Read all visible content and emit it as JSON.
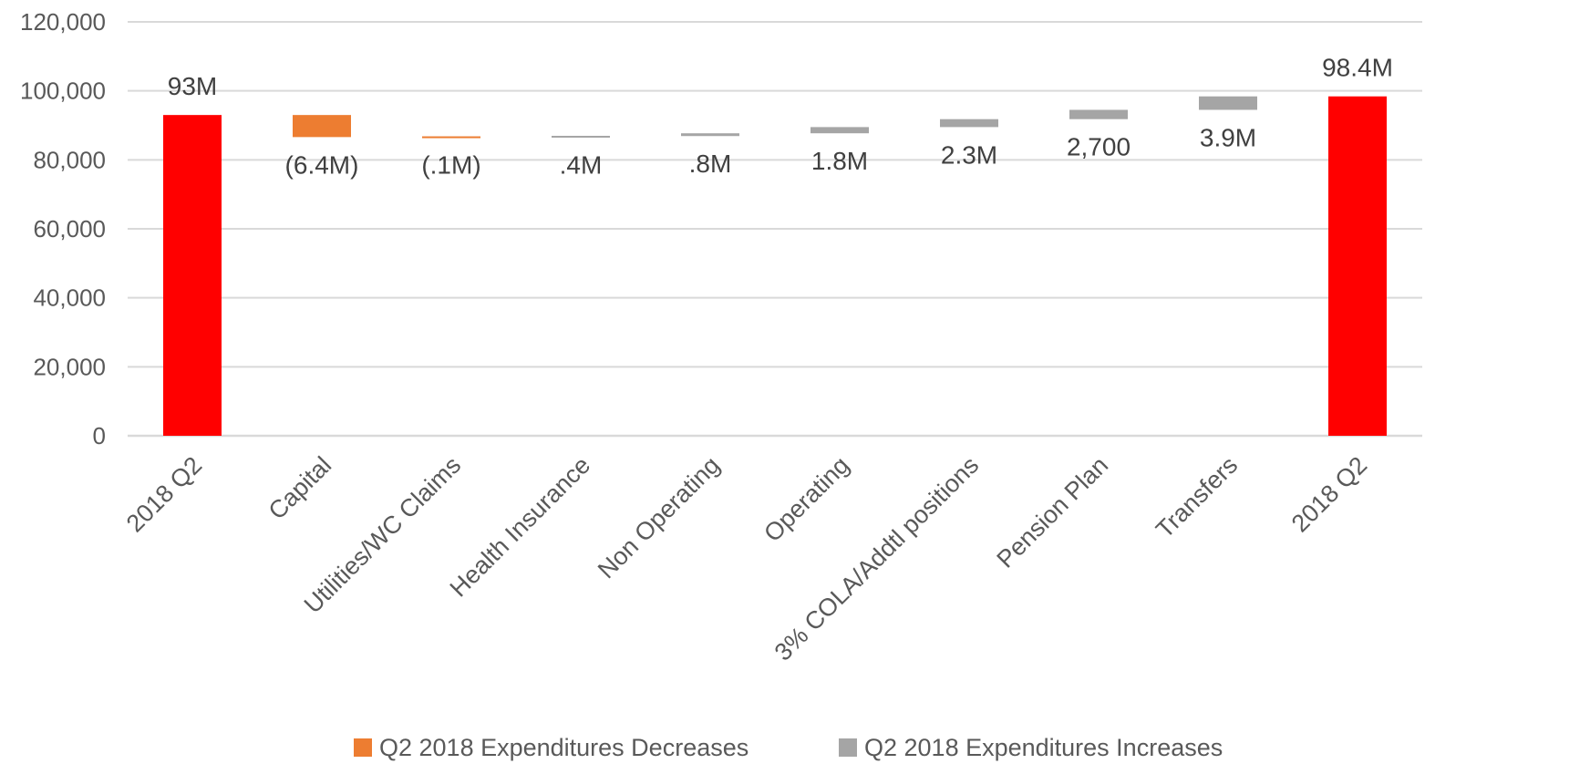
{
  "chart_data": {
    "type": "bar",
    "subtype": "waterfall",
    "title": "",
    "xlabel": "",
    "ylabel": "",
    "ylim": [
      0,
      120000
    ],
    "yticks": [
      0,
      20000,
      40000,
      60000,
      80000,
      100000,
      120000
    ],
    "ytick_labels": [
      "0",
      "20,000",
      "40,000",
      "60,000",
      "80,000",
      "100,000",
      "120,000"
    ],
    "grid": true,
    "legend_position": "bottom",
    "categories": [
      "2018 Q2",
      "Capital",
      "Utilities/WC Claims",
      "Health Insurance",
      "Non Operating",
      "Operating",
      "3% COLA/Addtl positions",
      "Pension Plan",
      "Transfers",
      "2018 Q2"
    ],
    "bars": [
      {
        "category": "2018 Q2",
        "kind": "total",
        "start": 0,
        "end": 93000,
        "label": "93M"
      },
      {
        "category": "Capital",
        "kind": "decrease",
        "start": 93000,
        "end": 86600,
        "label": "(6.4M)"
      },
      {
        "category": "Utilities/WC Claims",
        "kind": "decrease",
        "start": 86600,
        "end": 86500,
        "label": "(.1M)"
      },
      {
        "category": "Health Insurance",
        "kind": "increase",
        "start": 86500,
        "end": 86900,
        "label": ".4M"
      },
      {
        "category": "Non Operating",
        "kind": "increase",
        "start": 86900,
        "end": 87700,
        "label": ".8M"
      },
      {
        "category": "Operating",
        "kind": "increase",
        "start": 87700,
        "end": 89500,
        "label": "1.8M"
      },
      {
        "category": "3% COLA/Addtl positions",
        "kind": "increase",
        "start": 89500,
        "end": 91800,
        "label": "2.3M"
      },
      {
        "category": "Pension Plan",
        "kind": "increase",
        "start": 91800,
        "end": 94500,
        "label": "2,700"
      },
      {
        "category": "Transfers",
        "kind": "increase",
        "start": 94500,
        "end": 98400,
        "label": "3.9M"
      },
      {
        "category": "2018 Q2",
        "kind": "total",
        "start": 0,
        "end": 98400,
        "label": "98.4M"
      }
    ],
    "legend": [
      {
        "name": "Q2 2018 Expenditures Decreases",
        "kind": "decrease"
      },
      {
        "name": "Q2 2018 Expenditures Increases",
        "kind": "increase"
      }
    ],
    "colors": {
      "total": "#ff0000",
      "decrease": "#ed7d31",
      "increase": "#a5a5a5",
      "grid": "#d9d9d9",
      "text": "#595959"
    }
  }
}
